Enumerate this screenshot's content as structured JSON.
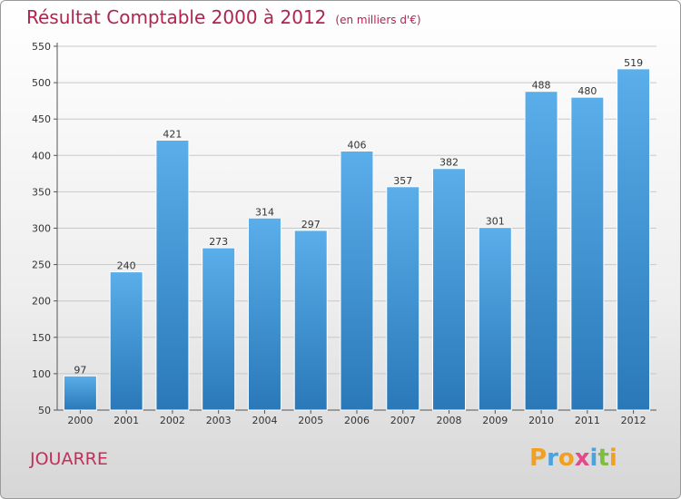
{
  "title": "Résultat Comptable 2000 à 2012",
  "unit": "(en milliers d'€)",
  "city": "JOUARRE",
  "brand": {
    "letters": [
      "P",
      "r",
      "o",
      "x",
      "i",
      "t",
      "i"
    ],
    "colors": [
      "#f2a021",
      "#4aa3df",
      "#f2a021",
      "#e34a8a",
      "#4aa3df",
      "#7bbf3a",
      "#f2a021"
    ]
  },
  "chart_data": {
    "type": "bar",
    "categories": [
      "2000",
      "2001",
      "2002",
      "2003",
      "2004",
      "2005",
      "2006",
      "2007",
      "2008",
      "2009",
      "2010",
      "2011",
      "2012"
    ],
    "values": [
      97,
      240,
      421,
      273,
      314,
      297,
      406,
      357,
      382,
      301,
      488,
      480,
      519
    ],
    "ylim": [
      50,
      550
    ],
    "yticks": [
      50,
      100,
      150,
      200,
      250,
      300,
      350,
      400,
      450,
      500,
      550
    ],
    "grid": true,
    "bar_color": "#3f93d6"
  }
}
